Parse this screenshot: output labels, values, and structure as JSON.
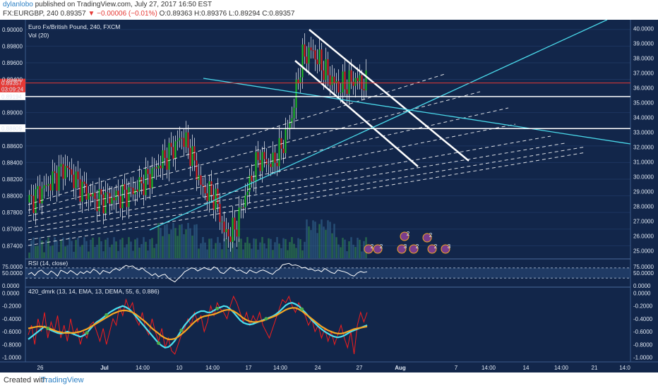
{
  "header": {
    "author": "dylanlobo",
    "published": "published on TradingView.com, July 27, 2017 16:50 EST",
    "symbol": "FX:EURGBP, 240",
    "last": "0.89357",
    "change": "−0.00006 (−0.01%)",
    "ohlc": "O:0.89363 H:0.89376 L:0.89294 C:0.89357"
  },
  "footer": {
    "created_with": "Created with",
    "brand": "TradingView"
  },
  "colors": {
    "background": "#12264a",
    "price_line": "#e53935",
    "trend_white": "#ffffff",
    "trend_cyan": "#4ad9ea",
    "rsi": "#ffffff",
    "osc_red": "#f31d1d",
    "osc_cyan": "#4ae0ef",
    "osc_orange": "#f5a623",
    "osc_marker": "#4caf50"
  },
  "chart_data": {
    "type": "candlestick",
    "title": "Euro Fx/British Pound, 240, FXCM",
    "indicators": [
      "Vol (20)",
      "RSI (14, close)",
      "420_dmrk (13, 14, EMA, 13, DEMA, 55, 6, 0.886)"
    ],
    "x_tick_labels": [
      "26",
      "Jul",
      "14:00",
      "10",
      "14:00",
      "17",
      "14:00",
      "24",
      "27",
      "Aug",
      "7",
      "14:00",
      "14",
      "14:00",
      "21",
      "14:0"
    ],
    "price_axis": {
      "ylim": [
        0.8725,
        0.901
      ],
      "tick_labels": [
        "0.90000",
        "0.89800",
        "0.89600",
        "0.89400",
        "0.89000",
        "0.88600",
        "0.88400",
        "0.88200",
        "0.88000",
        "0.87800",
        "0.87600",
        "0.87400"
      ],
      "marked_levels": [
        {
          "label": "0.89357",
          "value": 0.89357,
          "time": "03:09:24"
        },
        {
          "label": "0.89194",
          "value": 0.89194
        },
        {
          "label": "0.88809",
          "value": 0.88809
        }
      ]
    },
    "right_axis": {
      "ylim": [
        24.5,
        40.5
      ],
      "tick_labels": [
        "40.0000",
        "39.0000",
        "38.0000",
        "37.0000",
        "36.0000",
        "35.0000",
        "34.0000",
        "33.0000",
        "32.0000",
        "31.0000",
        "30.0000",
        "29.0000",
        "28.0000",
        "27.0000",
        "26.0000",
        "25.0000"
      ]
    },
    "rsi": {
      "ylim": [
        0,
        100
      ],
      "tick_labels": [
        "75.0000",
        "50.0000",
        "0.0000"
      ],
      "right_tick_labels": [
        "75.0000",
        "50.0000",
        "0.0000"
      ],
      "bands": [
        70,
        30
      ],
      "values": [
        45,
        52,
        40,
        55,
        62,
        50,
        43,
        58,
        50,
        38,
        61,
        55,
        48,
        60,
        52,
        42,
        55,
        48,
        58,
        50,
        65,
        58,
        45,
        60,
        55,
        50,
        62,
        68,
        60,
        72,
        80,
        75,
        78,
        68,
        62,
        70,
        58,
        50,
        40,
        48,
        35,
        42,
        45,
        30,
        22,
        15,
        28,
        40,
        55,
        62,
        70,
        68,
        58,
        65,
        72,
        66,
        62,
        74,
        68,
        52,
        48,
        60,
        72,
        68,
        58,
        62,
        54,
        48,
        62,
        55,
        50,
        58,
        62,
        57,
        50,
        45,
        58,
        65,
        82,
        85,
        88,
        80,
        82,
        78,
        70,
        72,
        64,
        66,
        58,
        62,
        55,
        68,
        60,
        52,
        48,
        62,
        58,
        55,
        50,
        42,
        38,
        50,
        56,
        52,
        55
      ]
    },
    "oscillator": {
      "ylim": [
        -1.05,
        0.05
      ],
      "tick_labels": [
        "0.0000",
        "-0.2000",
        "-0.4000",
        "-0.6000",
        "-0.8000",
        "-1.0000"
      ],
      "right_tick_labels": [
        "0.0000",
        "-0.2000",
        "-0.4000",
        "-0.6000",
        "-0.8000",
        "-1.0000"
      ],
      "series": [
        {
          "color": "#f31d1d",
          "values": [
            -0.65,
            -0.5,
            -0.8,
            -0.4,
            -0.6,
            -0.3,
            -0.7,
            -0.45,
            -0.6,
            -0.35,
            -0.7,
            -0.5,
            -0.75,
            -0.4,
            -0.65,
            -0.55,
            -0.8,
            -0.6,
            -0.7,
            -0.5,
            -0.45,
            -0.6,
            -0.75,
            -0.55,
            -0.8,
            -0.6,
            -0.4,
            -0.5,
            -0.2,
            -0.35,
            -0.1,
            -0.25,
            -0.15,
            -0.4,
            -0.5,
            -0.3,
            -0.55,
            -0.65,
            -0.4,
            -0.6,
            -0.75,
            -0.55,
            -0.85,
            -0.7,
            -0.9,
            -0.95,
            -0.8,
            -0.65,
            -0.55,
            -0.4,
            -0.5,
            -0.3,
            -0.45,
            -0.35,
            -0.6,
            -0.45,
            -0.2,
            -0.35,
            -0.15,
            -0.25,
            -0.3,
            -0.4,
            -0.2,
            -0.05,
            -0.15,
            -0.3,
            -0.45,
            -0.3,
            -0.5,
            -0.35,
            -0.45,
            -0.3,
            -0.5,
            -0.6,
            -0.7,
            -0.55,
            -0.4,
            -0.25,
            -0.1,
            -0.15,
            -0.05,
            -0.2,
            -0.3,
            -0.15,
            -0.25,
            -0.35,
            -0.5,
            -0.4,
            -0.6,
            -0.5,
            -0.7,
            -0.55,
            -0.75,
            -0.6,
            -0.8,
            -0.65,
            -0.5,
            -0.7,
            -0.85,
            -0.6,
            -0.95,
            -0.5,
            -0.3,
            -0.45,
            -0.3
          ]
        },
        {
          "color": "#4ae0ef",
          "values": [
            -0.72,
            -0.68,
            -0.64,
            -0.6,
            -0.56,
            -0.52,
            -0.55,
            -0.58,
            -0.6,
            -0.62,
            -0.63,
            -0.62,
            -0.6,
            -0.62,
            -0.64,
            -0.66,
            -0.68,
            -0.66,
            -0.62,
            -0.56,
            -0.5,
            -0.45,
            -0.42,
            -0.38,
            -0.34,
            -0.3,
            -0.27,
            -0.24,
            -0.22,
            -0.2,
            -0.22,
            -0.25,
            -0.3,
            -0.36,
            -0.42,
            -0.48,
            -0.54,
            -0.6,
            -0.66,
            -0.72,
            -0.78,
            -0.82,
            -0.85,
            -0.84,
            -0.8,
            -0.74,
            -0.66,
            -0.58,
            -0.5,
            -0.44,
            -0.38,
            -0.33,
            -0.3,
            -0.28,
            -0.28,
            -0.3,
            -0.3,
            -0.27,
            -0.24,
            -0.22,
            -0.2,
            -0.21,
            -0.25,
            -0.3,
            -0.36,
            -0.42,
            -0.46,
            -0.48,
            -0.49,
            -0.48,
            -0.46,
            -0.44,
            -0.42,
            -0.4,
            -0.38,
            -0.36,
            -0.33,
            -0.29,
            -0.24,
            -0.19,
            -0.16,
            -0.15,
            -0.17,
            -0.2,
            -0.25,
            -0.3,
            -0.36,
            -0.42,
            -0.47,
            -0.52,
            -0.56,
            -0.6,
            -0.63,
            -0.66,
            -0.68,
            -0.69,
            -0.68,
            -0.66,
            -0.63,
            -0.6,
            -0.58,
            -0.56,
            -0.54,
            -0.52,
            -0.5
          ]
        },
        {
          "color": "#f5a623",
          "values": [
            -0.55,
            -0.54,
            -0.53,
            -0.52,
            -0.52,
            -0.53,
            -0.54,
            -0.56,
            -0.58,
            -0.6,
            -0.61,
            -0.62,
            -0.62,
            -0.62,
            -0.62,
            -0.61,
            -0.6,
            -0.58,
            -0.56,
            -0.53,
            -0.5,
            -0.47,
            -0.44,
            -0.41,
            -0.38,
            -0.35,
            -0.32,
            -0.3,
            -0.28,
            -0.27,
            -0.27,
            -0.28,
            -0.3,
            -0.33,
            -0.37,
            -0.41,
            -0.45,
            -0.5,
            -0.55,
            -0.59,
            -0.63,
            -0.67,
            -0.7,
            -0.72,
            -0.72,
            -0.71,
            -0.68,
            -0.64,
            -0.6,
            -0.55,
            -0.5,
            -0.45,
            -0.41,
            -0.38,
            -0.36,
            -0.35,
            -0.34,
            -0.33,
            -0.31,
            -0.29,
            -0.27,
            -0.26,
            -0.26,
            -0.28,
            -0.31,
            -0.35,
            -0.39,
            -0.42,
            -0.44,
            -0.45,
            -0.45,
            -0.44,
            -0.43,
            -0.41,
            -0.39,
            -0.37,
            -0.35,
            -0.32,
            -0.29,
            -0.26,
            -0.24,
            -0.23,
            -0.23,
            -0.25,
            -0.28,
            -0.32,
            -0.36,
            -0.4,
            -0.44,
            -0.48,
            -0.52,
            -0.55,
            -0.58,
            -0.6,
            -0.62,
            -0.63,
            -0.63,
            -0.62,
            -0.6,
            -0.58,
            -0.56,
            -0.55,
            -0.54,
            -0.53,
            -0.52
          ]
        }
      ]
    },
    "annotation_markers": [
      "2",
      "2",
      "2",
      "3",
      "2",
      "2",
      "2",
      "3"
    ]
  }
}
